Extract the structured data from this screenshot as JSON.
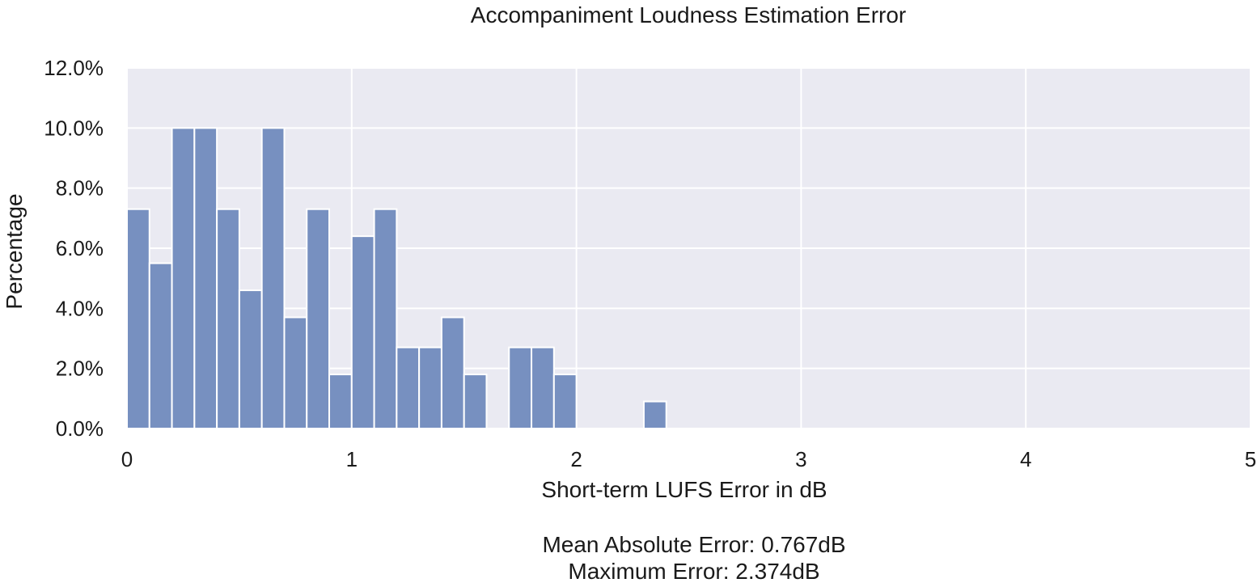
{
  "chart_data": {
    "type": "bar",
    "title": "Accompaniment Loudness Estimation Error",
    "xlabel": "Short-term LUFS Error in dB",
    "ylabel": "Percentage",
    "xlim": [
      0,
      5
    ],
    "ylim": [
      0,
      12
    ],
    "x_ticks": [
      "0",
      "1",
      "2",
      "3",
      "4",
      "5"
    ],
    "y_ticks": [
      "0.0%",
      "2.0%",
      "4.0%",
      "6.0%",
      "8.0%",
      "10.0%",
      "12.0%"
    ],
    "grid": true,
    "bin_width": 0.1,
    "bins": [
      {
        "start": 0.0,
        "value": 7.3
      },
      {
        "start": 0.1,
        "value": 5.5
      },
      {
        "start": 0.2,
        "value": 10.0
      },
      {
        "start": 0.3,
        "value": 10.0
      },
      {
        "start": 0.4,
        "value": 7.3
      },
      {
        "start": 0.5,
        "value": 4.6
      },
      {
        "start": 0.6,
        "value": 10.0
      },
      {
        "start": 0.7,
        "value": 3.7
      },
      {
        "start": 0.8,
        "value": 7.3
      },
      {
        "start": 0.9,
        "value": 1.8
      },
      {
        "start": 1.0,
        "value": 6.4
      },
      {
        "start": 1.1,
        "value": 7.3
      },
      {
        "start": 1.2,
        "value": 2.7
      },
      {
        "start": 1.3,
        "value": 2.7
      },
      {
        "start": 1.4,
        "value": 3.7
      },
      {
        "start": 1.5,
        "value": 1.8
      },
      {
        "start": 1.6,
        "value": 0.0
      },
      {
        "start": 1.7,
        "value": 2.7
      },
      {
        "start": 1.8,
        "value": 2.7
      },
      {
        "start": 1.9,
        "value": 1.8
      },
      {
        "start": 2.0,
        "value": 0.0
      },
      {
        "start": 2.1,
        "value": 0.0
      },
      {
        "start": 2.2,
        "value": 0.0
      },
      {
        "start": 2.3,
        "value": 0.9
      }
    ],
    "annotations": [
      "Mean Absolute Error: 0.767dB",
      "Maximum Error: 2.374dB"
    ],
    "colors": {
      "bar": "#7790c0",
      "plot_bg": "#eaeaf2",
      "grid": "#ffffff"
    }
  }
}
